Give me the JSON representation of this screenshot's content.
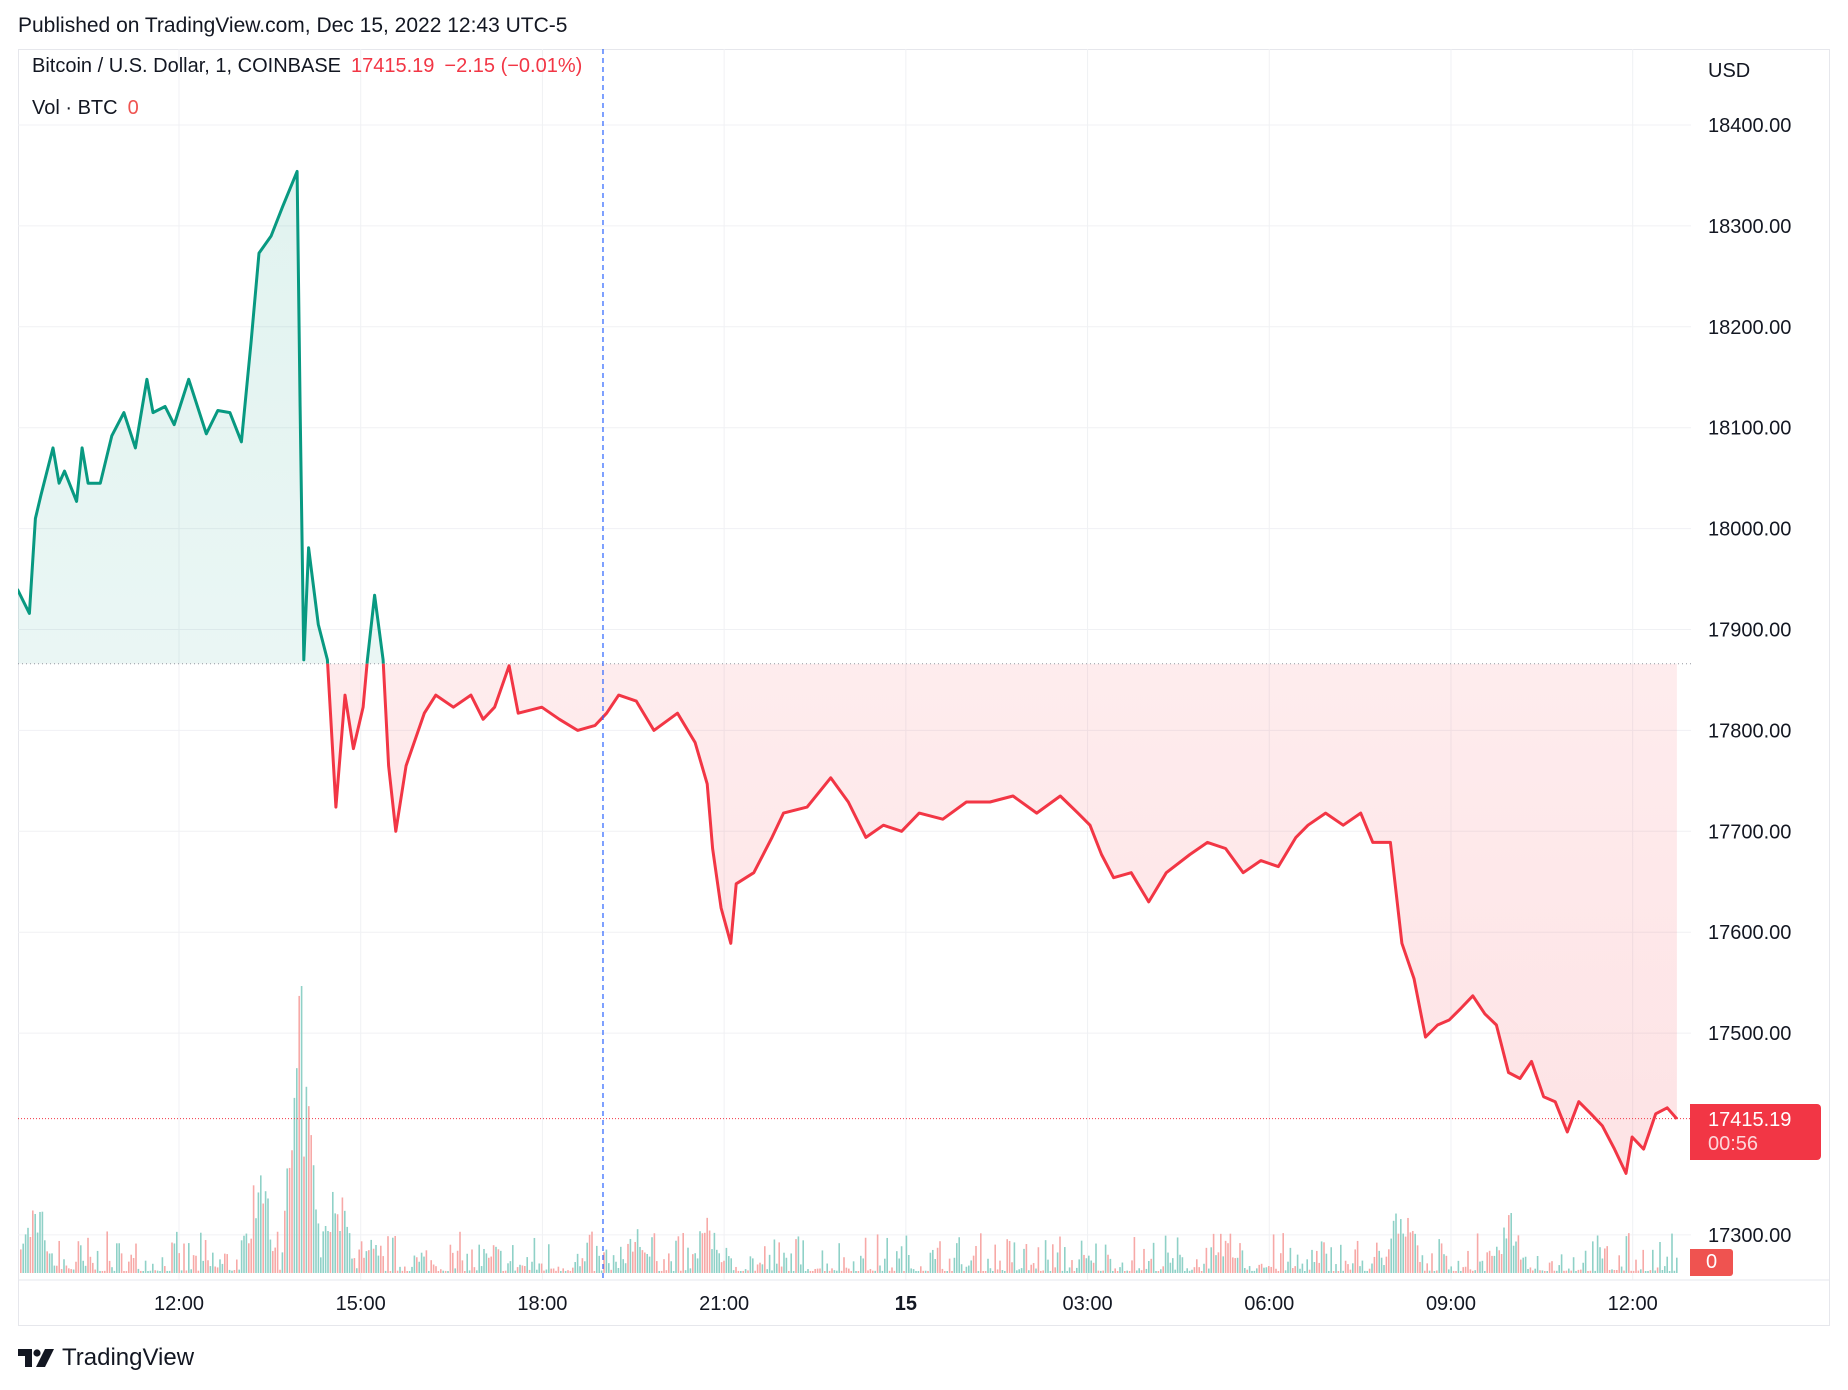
{
  "header": {
    "published": "Published on TradingView.com, Dec 15, 2022 12:43 UTC-5"
  },
  "legend": {
    "symbol": "Bitcoin / U.S. Dollar, 1, COINBASE",
    "last": "17415.19",
    "change": "−2.15 (−0.01%)",
    "volume_label": "Vol · BTC",
    "volume_value": "0"
  },
  "price_tag": {
    "price": "17415.19",
    "countdown": "00:56"
  },
  "volume_tag": "0",
  "footer": {
    "brand": "TradingView"
  },
  "colors": {
    "up": "#089981",
    "down": "#f23645",
    "crosshair": "#2962ff"
  },
  "chart_data": {
    "type": "area",
    "title": "Bitcoin / U.S. Dollar, 1, COINBASE",
    "currency": "USD",
    "x_unit": "hours since Dec 14 00:00 (UTC-5)",
    "xlim": [
      9.34,
      36.73
    ],
    "ylim": [
      17265,
      18420
    ],
    "baseline": 17866,
    "last_price": 17415.19,
    "crosshair_x": 19.0,
    "grid": true,
    "y_ticks": [
      {
        "v": 18400,
        "label": "18400.00"
      },
      {
        "v": 18300,
        "label": "18300.00"
      },
      {
        "v": 18200,
        "label": "18200.00"
      },
      {
        "v": 18100,
        "label": "18100.00"
      },
      {
        "v": 18000,
        "label": "18000.00"
      },
      {
        "v": 17900,
        "label": "17900.00"
      },
      {
        "v": 17800,
        "label": "17800.00"
      },
      {
        "v": 17700,
        "label": "17700.00"
      },
      {
        "v": 17600,
        "label": "17600.00"
      },
      {
        "v": 17500,
        "label": "17500.00"
      },
      {
        "v": 17300,
        "label": "17300.00"
      }
    ],
    "x_ticks": [
      {
        "v": 12,
        "label": "12:00",
        "bold": false
      },
      {
        "v": 15,
        "label": "15:00",
        "bold": false
      },
      {
        "v": 18,
        "label": "18:00",
        "bold": false
      },
      {
        "v": 21,
        "label": "21:00",
        "bold": false
      },
      {
        "v": 24,
        "label": "15",
        "bold": true
      },
      {
        "v": 27,
        "label": "03:00",
        "bold": false
      },
      {
        "v": 30,
        "label": "06:00",
        "bold": false
      },
      {
        "v": 33,
        "label": "09:00",
        "bold": false
      },
      {
        "v": 36,
        "label": "12:00",
        "bold": false
      }
    ],
    "series": [
      {
        "name": "BTCUSD",
        "points": [
          [
            9.33,
            17940
          ],
          [
            9.53,
            17916
          ],
          [
            9.63,
            18010
          ],
          [
            9.72,
            18033
          ],
          [
            9.92,
            18080
          ],
          [
            10.02,
            18045
          ],
          [
            10.11,
            18057
          ],
          [
            10.31,
            18027
          ],
          [
            10.4,
            18080
          ],
          [
            10.5,
            18045
          ],
          [
            10.7,
            18045
          ],
          [
            10.89,
            18092
          ],
          [
            11.09,
            18115
          ],
          [
            11.28,
            18080
          ],
          [
            11.47,
            18148
          ],
          [
            11.57,
            18115
          ],
          [
            11.77,
            18121
          ],
          [
            11.92,
            18103
          ],
          [
            12.16,
            18148
          ],
          [
            12.45,
            18094
          ],
          [
            12.64,
            18117
          ],
          [
            12.84,
            18115
          ],
          [
            13.03,
            18086
          ],
          [
            13.19,
            18185
          ],
          [
            13.32,
            18273
          ],
          [
            13.52,
            18290
          ],
          [
            13.71,
            18319
          ],
          [
            13.95,
            18354
          ],
          [
            14.0,
            18121
          ],
          [
            14.06,
            17870
          ],
          [
            14.14,
            17981
          ],
          [
            14.3,
            17905
          ],
          [
            14.45,
            17870
          ],
          [
            14.59,
            17724
          ],
          [
            14.74,
            17835
          ],
          [
            14.88,
            17782
          ],
          [
            15.04,
            17823
          ],
          [
            15.11,
            17870
          ],
          [
            15.23,
            17934
          ],
          [
            15.37,
            17870
          ],
          [
            15.46,
            17765
          ],
          [
            15.58,
            17700
          ],
          [
            15.75,
            17765
          ],
          [
            16.05,
            17817
          ],
          [
            16.24,
            17835
          ],
          [
            16.53,
            17823
          ],
          [
            16.82,
            17835
          ],
          [
            17.02,
            17811
          ],
          [
            17.21,
            17823
          ],
          [
            17.45,
            17864
          ],
          [
            17.6,
            17817
          ],
          [
            17.99,
            17823
          ],
          [
            18.28,
            17811
          ],
          [
            18.58,
            17800
          ],
          [
            18.87,
            17805
          ],
          [
            19.06,
            17817
          ],
          [
            19.26,
            17835
          ],
          [
            19.55,
            17829
          ],
          [
            19.84,
            17800
          ],
          [
            20.23,
            17817
          ],
          [
            20.52,
            17788
          ],
          [
            20.72,
            17747
          ],
          [
            20.81,
            17683
          ],
          [
            20.95,
            17624
          ],
          [
            21.11,
            17589
          ],
          [
            21.2,
            17648
          ],
          [
            21.49,
            17659
          ],
          [
            21.79,
            17694
          ],
          [
            21.98,
            17718
          ],
          [
            22.37,
            17724
          ],
          [
            22.76,
            17753
          ],
          [
            23.05,
            17729
          ],
          [
            23.34,
            17694
          ],
          [
            23.63,
            17706
          ],
          [
            23.93,
            17700
          ],
          [
            24.22,
            17718
          ],
          [
            24.61,
            17712
          ],
          [
            25.0,
            17729
          ],
          [
            25.39,
            17729
          ],
          [
            25.77,
            17735
          ],
          [
            26.16,
            17718
          ],
          [
            26.55,
            17735
          ],
          [
            26.84,
            17718
          ],
          [
            27.04,
            17706
          ],
          [
            27.23,
            17677
          ],
          [
            27.43,
            17654
          ],
          [
            27.72,
            17659
          ],
          [
            28.01,
            17630
          ],
          [
            28.3,
            17659
          ],
          [
            28.69,
            17677
          ],
          [
            28.98,
            17689
          ],
          [
            29.28,
            17683
          ],
          [
            29.57,
            17659
          ],
          [
            29.86,
            17671
          ],
          [
            30.15,
            17665
          ],
          [
            30.44,
            17694
          ],
          [
            30.64,
            17706
          ],
          [
            30.93,
            17718
          ],
          [
            31.22,
            17706
          ],
          [
            31.51,
            17718
          ],
          [
            31.71,
            17689
          ],
          [
            32.0,
            17689
          ],
          [
            32.19,
            17589
          ],
          [
            32.39,
            17554
          ],
          [
            32.58,
            17496
          ],
          [
            32.78,
            17508
          ],
          [
            32.97,
            17513
          ],
          [
            33.17,
            17525
          ],
          [
            33.36,
            17537
          ],
          [
            33.56,
            17519
          ],
          [
            33.75,
            17508
          ],
          [
            33.95,
            17461
          ],
          [
            34.14,
            17455
          ],
          [
            34.33,
            17472
          ],
          [
            34.53,
            17437
          ],
          [
            34.72,
            17432
          ],
          [
            34.92,
            17402
          ],
          [
            35.11,
            17432
          ],
          [
            35.31,
            17420
          ],
          [
            35.5,
            17408
          ],
          [
            35.7,
            17385
          ],
          [
            35.89,
            17361
          ],
          [
            35.99,
            17397
          ],
          [
            36.18,
            17385
          ],
          [
            36.38,
            17420
          ],
          [
            36.57,
            17426
          ],
          [
            36.73,
            17415
          ]
        ]
      }
    ],
    "volume_spikes_relative": [
      [
        9.63,
        0.3
      ],
      [
        13.32,
        0.42
      ],
      [
        14.0,
        1.0
      ],
      [
        14.59,
        0.4
      ],
      [
        20.72,
        0.19
      ],
      [
        32.19,
        0.32
      ],
      [
        33.95,
        0.22
      ],
      [
        19.55,
        0.17
      ],
      [
        29.28,
        0.12
      ]
    ]
  }
}
